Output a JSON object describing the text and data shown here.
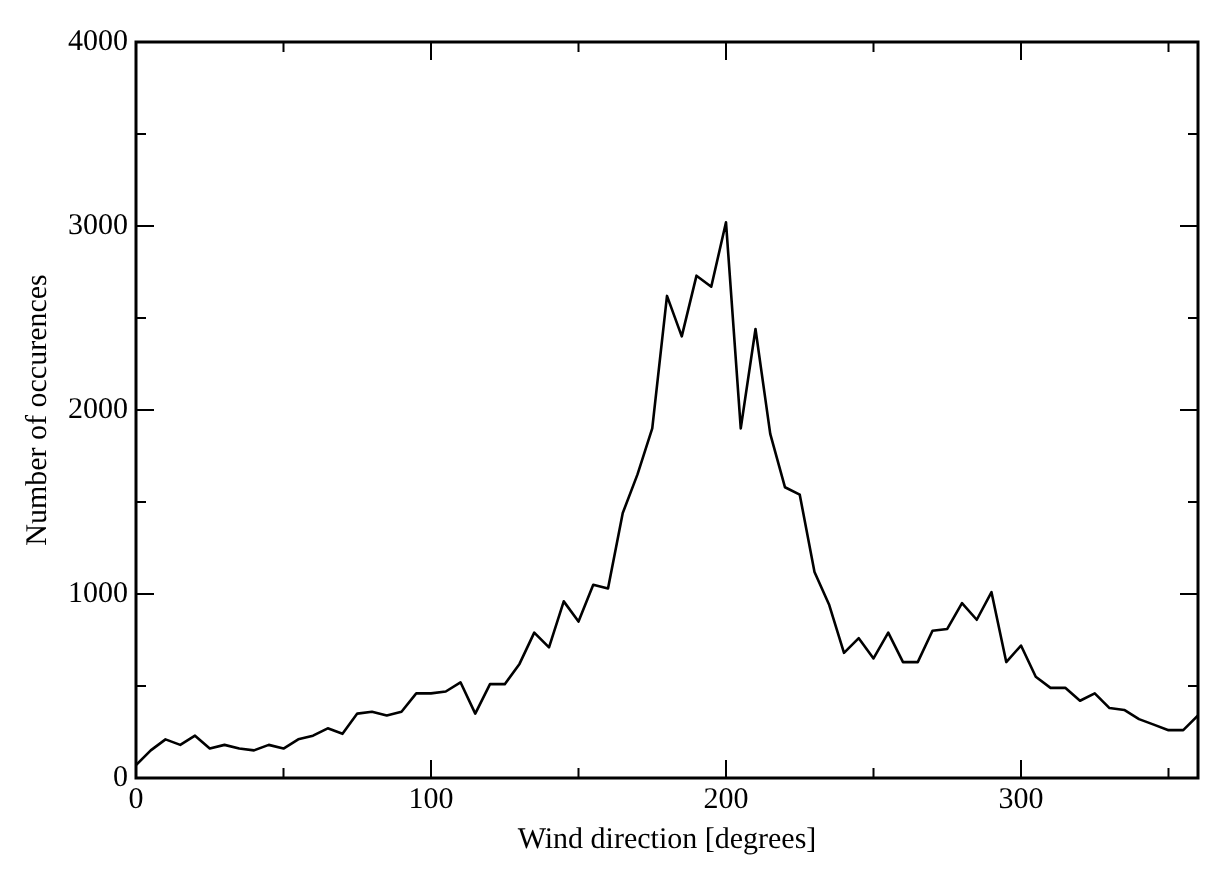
{
  "chart_data": {
    "type": "line",
    "xlabel": "Wind direction [degrees]",
    "ylabel": "Number of occurences",
    "x": [
      0,
      5,
      10,
      15,
      20,
      25,
      30,
      35,
      40,
      45,
      50,
      55,
      60,
      65,
      70,
      75,
      80,
      85,
      90,
      95,
      100,
      105,
      110,
      115,
      120,
      125,
      130,
      135,
      140,
      145,
      150,
      155,
      160,
      165,
      170,
      175,
      180,
      185,
      190,
      195,
      200,
      205,
      210,
      215,
      220,
      225,
      230,
      235,
      240,
      245,
      250,
      255,
      260,
      265,
      270,
      275,
      280,
      285,
      290,
      295,
      300,
      305,
      310,
      315,
      320,
      325,
      330,
      335,
      340,
      345,
      350,
      355,
      360
    ],
    "series": [
      {
        "color": "#000000",
        "values": [
          70,
          150,
          210,
          180,
          230,
          160,
          180,
          160,
          150,
          180,
          160,
          210,
          230,
          270,
          240,
          350,
          360,
          340,
          360,
          460,
          460,
          470,
          520,
          350,
          510,
          510,
          620,
          790,
          710,
          960,
          850,
          1050,
          1030,
          1440,
          1650,
          1900,
          2620,
          2400,
          2730,
          2670,
          3020,
          1900,
          2440,
          1870,
          1580,
          1540,
          1120,
          940,
          680,
          760,
          650,
          790,
          630,
          630,
          800,
          810,
          950,
          860,
          1010,
          630,
          720,
          550,
          490,
          490,
          420,
          460,
          380,
          370,
          320,
          290,
          260,
          260,
          340
        ]
      }
    ],
    "xlim": [
      0,
      360
    ],
    "ylim": [
      0,
      4000
    ],
    "xticks": [
      0,
      {
        "value": 50,
        "label": null
      },
      100,
      {
        "value": 150,
        "label": null
      },
      200,
      {
        "value": 250,
        "label": null
      },
      300,
      {
        "value": 350,
        "label": null
      }
    ],
    "yticks": [
      0,
      {
        "value": 500,
        "label": null
      },
      1000,
      {
        "value": 1500,
        "label": null
      },
      2000,
      {
        "value": 2500,
        "label": null
      },
      3000,
      {
        "value": 3500,
        "label": null
      },
      4000
    ],
    "grid": false,
    "legend": false,
    "marker": "none",
    "line_style": "solid",
    "tick_labels": "xy"
  }
}
